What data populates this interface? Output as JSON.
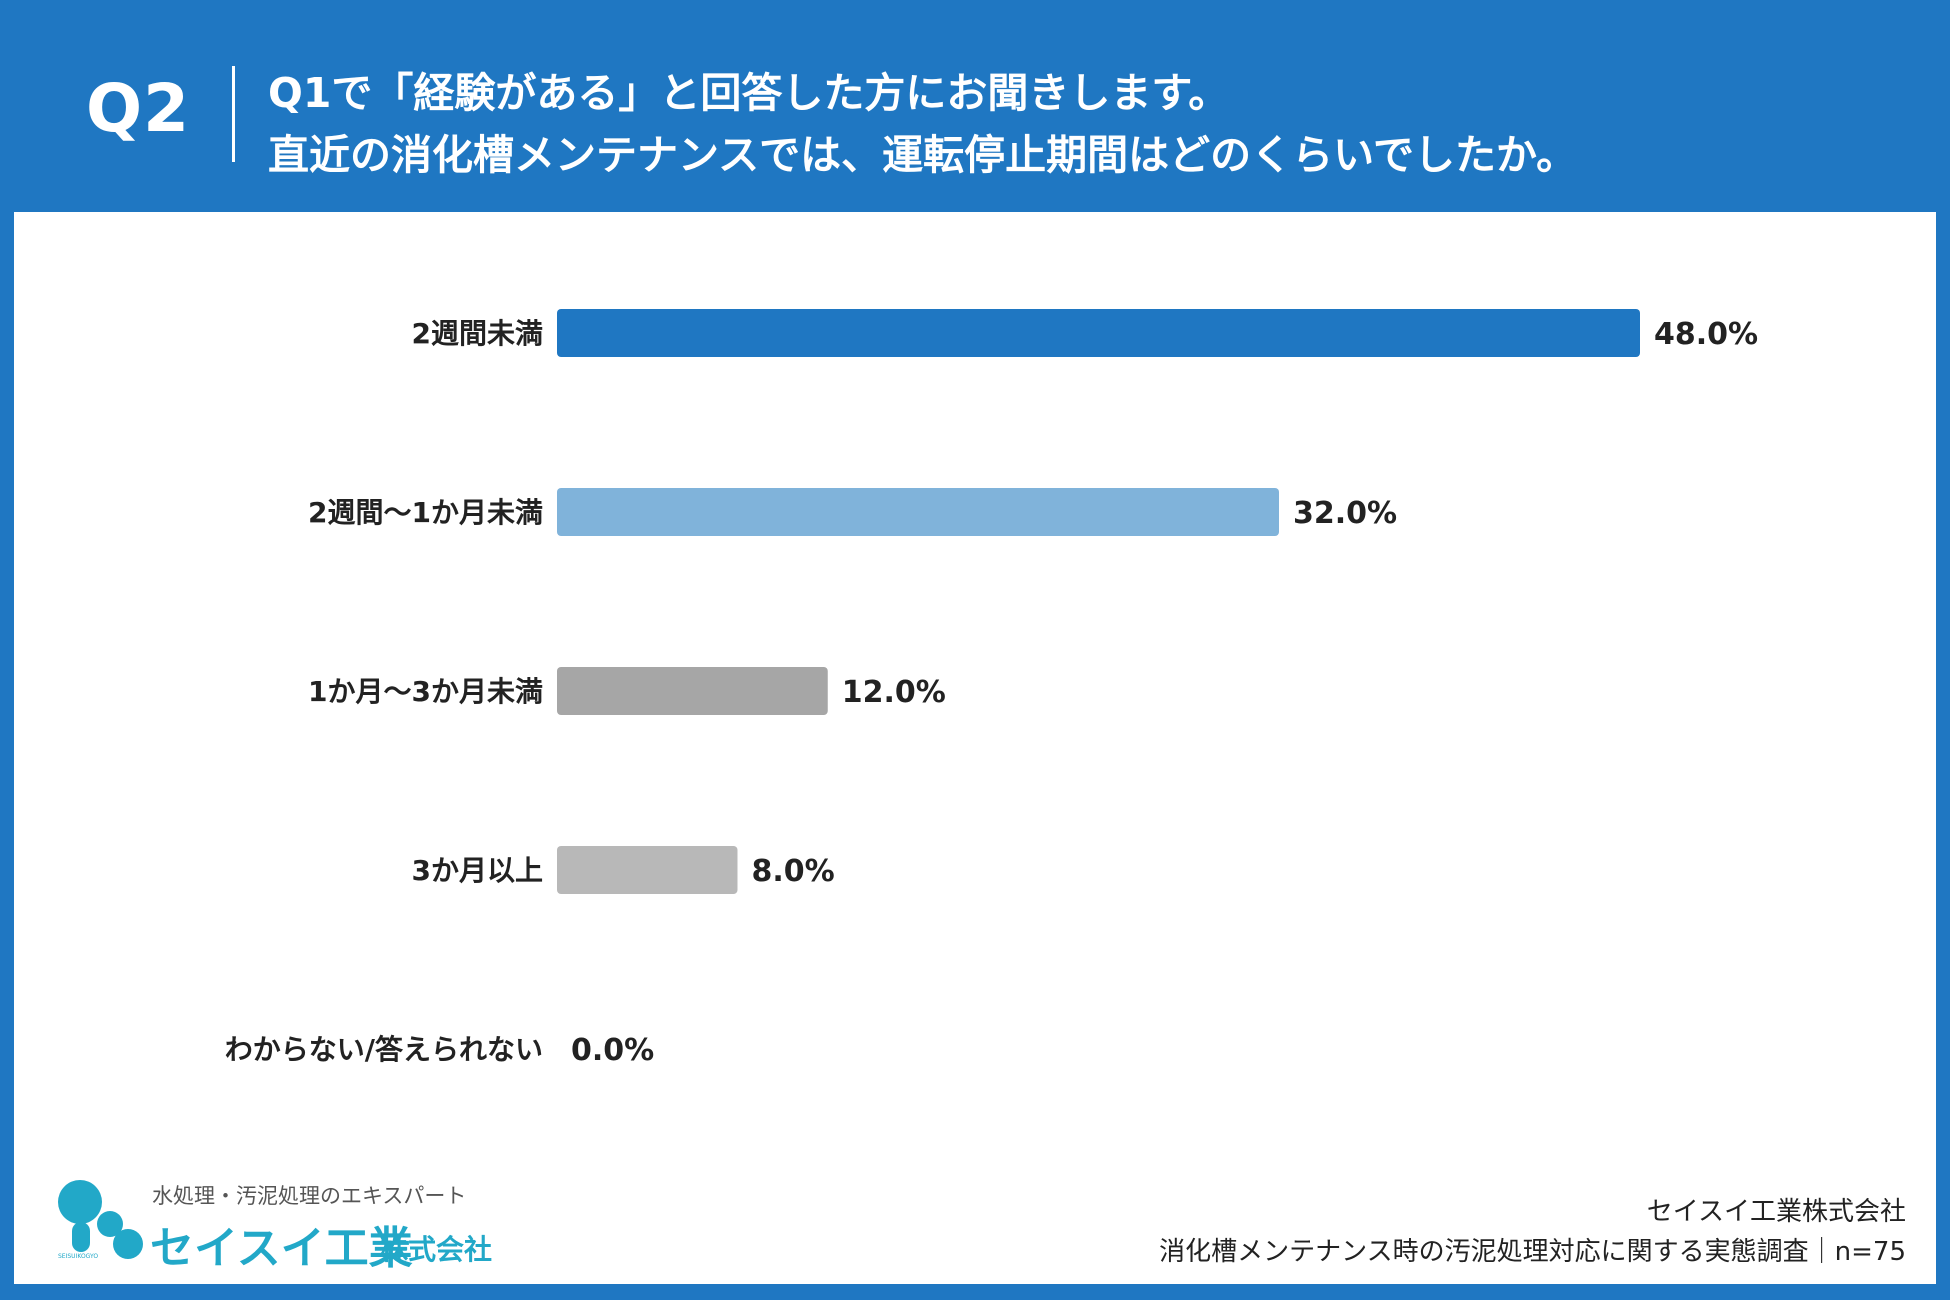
{
  "header": {
    "q_number": "Q2",
    "question_line1": "Q1で「経験がある」と回答した方にお聞きします。",
    "question_line2": "直近の消化槽メンテナンスでは、運転停止期間はどのくらいでしたか。"
  },
  "chart_data": {
    "type": "bar",
    "orientation": "horizontal",
    "categories": [
      "2週間未満",
      "2週間〜1か月未満",
      "1か月〜3か月未満",
      "3か月以上",
      "わからない/答えられない"
    ],
    "values": [
      48.0,
      32.0,
      12.0,
      8.0,
      0.0
    ],
    "value_labels": [
      "48.0%",
      "32.0%",
      "12.0%",
      "8.0%",
      "0.0%"
    ],
    "colors": [
      "#1f77c2",
      "#80b3da",
      "#a6a6a6",
      "#b8b8b8",
      "#b8b8b8"
    ],
    "xlim": [
      0,
      50
    ],
    "grid": false,
    "legend": "none"
  },
  "logo": {
    "tagline": "水処理・汚泥処理のエキスパート",
    "name": "セイスイ工業",
    "suffix": "株式会社",
    "mark_text": "SEISUIKOGYO",
    "color": "#22a8c8"
  },
  "source": {
    "company": "セイスイ工業株式会社",
    "survey": "消化槽メンテナンス時の汚泥処理対応に関する実態調査｜n=75"
  }
}
